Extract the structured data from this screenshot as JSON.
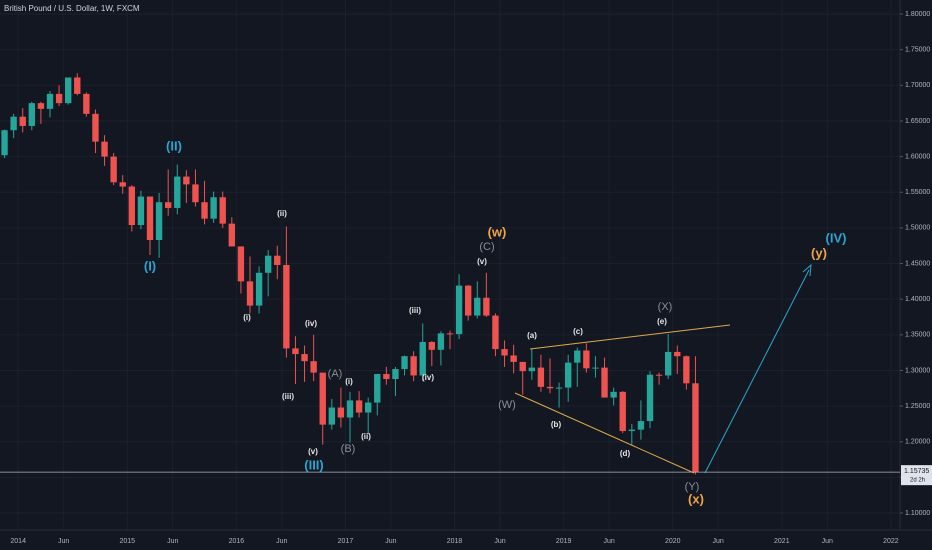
{
  "chart_data": {
    "type": "candlestick",
    "title": "British Pound / U.S. Dollar, 1W, FXCM",
    "x": [
      "2013-11",
      "2013-12",
      "2014-01",
      "2014-02",
      "2014-03",
      "2014-04",
      "2014-05",
      "2014-06",
      "2014-07",
      "2014-08",
      "2014-09",
      "2014-10",
      "2014-11",
      "2014-12",
      "2015-01",
      "2015-02",
      "2015-03",
      "2015-04",
      "2015-05",
      "2015-06",
      "2015-07",
      "2015-08",
      "2015-09",
      "2015-10",
      "2015-11",
      "2015-12",
      "2016-01",
      "2016-02",
      "2016-03",
      "2016-04",
      "2016-05",
      "2016-06",
      "2016-07",
      "2016-08",
      "2016-09",
      "2016-10",
      "2016-11",
      "2016-12",
      "2017-01",
      "2017-02",
      "2017-03",
      "2017-04",
      "2017-05",
      "2017-06",
      "2017-07",
      "2017-08",
      "2017-09",
      "2017-10",
      "2017-11",
      "2017-12",
      "2018-01",
      "2018-02",
      "2018-03",
      "2018-04",
      "2018-05",
      "2018-06",
      "2018-07",
      "2018-08",
      "2018-09",
      "2018-10",
      "2018-11",
      "2018-12",
      "2019-01",
      "2019-02",
      "2019-03",
      "2019-04",
      "2019-05",
      "2019-06",
      "2019-07",
      "2019-08",
      "2019-09",
      "2019-10",
      "2019-11",
      "2019-12",
      "2020-01",
      "2020-02",
      "2020-03"
    ],
    "open": [
      1.602,
      1.637,
      1.656,
      1.643,
      1.675,
      1.667,
      1.688,
      1.675,
      1.711,
      1.688,
      1.66,
      1.621,
      1.6,
      1.564,
      1.558,
      1.504,
      1.544,
      1.483,
      1.536,
      1.528,
      1.572,
      1.561,
      1.536,
      1.513,
      1.543,
      1.506,
      1.474,
      1.425,
      1.391,
      1.437,
      1.461,
      1.448,
      1.331,
      1.323,
      1.313,
      1.297,
      1.224,
      1.248,
      1.234,
      1.258,
      1.241,
      1.255,
      1.295,
      1.288,
      1.302,
      1.32,
      1.293,
      1.34,
      1.329,
      1.352,
      1.351,
      1.419,
      1.377,
      1.402,
      1.377,
      1.33,
      1.321,
      1.312,
      1.299,
      1.304,
      1.277,
      1.275,
      1.276,
      1.311,
      1.328,
      1.303,
      1.304,
      1.262,
      1.27,
      1.215,
      1.217,
      1.229,
      1.294,
      1.293,
      1.326,
      1.32,
      1.282
    ],
    "high": [
      1.638,
      1.66,
      1.668,
      1.677,
      1.677,
      1.692,
      1.7,
      1.711,
      1.717,
      1.69,
      1.666,
      1.63,
      1.605,
      1.574,
      1.56,
      1.552,
      1.544,
      1.549,
      1.582,
      1.589,
      1.581,
      1.582,
      1.566,
      1.551,
      1.551,
      1.515,
      1.474,
      1.46,
      1.446,
      1.469,
      1.475,
      1.502,
      1.348,
      1.335,
      1.35,
      1.297,
      1.26,
      1.276,
      1.27,
      1.271,
      1.262,
      1.295,
      1.305,
      1.305,
      1.321,
      1.327,
      1.366,
      1.341,
      1.355,
      1.356,
      1.435,
      1.42,
      1.425,
      1.437,
      1.38,
      1.342,
      1.336,
      1.312,
      1.33,
      1.322,
      1.317,
      1.283,
      1.322,
      1.332,
      1.338,
      1.32,
      1.318,
      1.276,
      1.271,
      1.225,
      1.258,
      1.299,
      1.297,
      1.351,
      1.335,
      1.321,
      1.32
    ],
    "low": [
      1.598,
      1.626,
      1.634,
      1.637,
      1.646,
      1.655,
      1.671,
      1.673,
      1.686,
      1.656,
      1.605,
      1.587,
      1.56,
      1.548,
      1.495,
      1.498,
      1.462,
      1.458,
      1.517,
      1.519,
      1.535,
      1.53,
      1.505,
      1.507,
      1.5,
      1.474,
      1.408,
      1.38,
      1.38,
      1.404,
      1.428,
      1.318,
      1.281,
      1.284,
      1.285,
      1.196,
      1.217,
      1.22,
      1.199,
      1.234,
      1.211,
      1.237,
      1.28,
      1.264,
      1.293,
      1.285,
      1.285,
      1.306,
      1.307,
      1.33,
      1.344,
      1.37,
      1.373,
      1.375,
      1.32,
      1.305,
      1.296,
      1.266,
      1.287,
      1.27,
      1.268,
      1.248,
      1.256,
      1.277,
      1.297,
      1.29,
      1.262,
      1.251,
      1.212,
      1.196,
      1.203,
      1.219,
      1.28,
      1.288,
      1.295,
      1.273,
      1.1541
    ],
    "close": [
      1.637,
      1.656,
      1.643,
      1.675,
      1.667,
      1.688,
      1.675,
      1.711,
      1.688,
      1.66,
      1.621,
      1.6,
      1.564,
      1.558,
      1.504,
      1.544,
      1.483,
      1.536,
      1.528,
      1.572,
      1.561,
      1.536,
      1.513,
      1.543,
      1.506,
      1.474,
      1.425,
      1.391,
      1.437,
      1.461,
      1.448,
      1.331,
      1.323,
      1.313,
      1.297,
      1.224,
      1.248,
      1.234,
      1.258,
      1.241,
      1.255,
      1.295,
      1.288,
      1.302,
      1.32,
      1.293,
      1.34,
      1.329,
      1.352,
      1.351,
      1.419,
      1.377,
      1.402,
      1.377,
      1.33,
      1.321,
      1.312,
      1.299,
      1.304,
      1.277,
      1.275,
      1.276,
      1.311,
      1.328,
      1.303,
      1.304,
      1.262,
      1.27,
      1.215,
      1.217,
      1.229,
      1.294,
      1.293,
      1.326,
      1.32,
      1.282,
      1.15735
    ],
    "up_color": "#26a69a",
    "down_color": "#ef5350",
    "countdown": "2d 2h",
    "xlim": [
      "2013-11",
      "2022-02"
    ],
    "xticks": [
      {
        "value": "2014-01",
        "label": "2014"
      },
      {
        "value": "2014-06",
        "label": "Jun"
      },
      {
        "value": "2015-01",
        "label": "2015"
      },
      {
        "value": "2015-06",
        "label": "Jun"
      },
      {
        "value": "2016-01",
        "label": "2016"
      },
      {
        "value": "2016-06",
        "label": "Jun"
      },
      {
        "value": "2017-01",
        "label": "2017"
      },
      {
        "value": "2017-06",
        "label": "Jun"
      },
      {
        "value": "2018-01",
        "label": "2018"
      },
      {
        "value": "2018-06",
        "label": "Jun"
      },
      {
        "value": "2019-01",
        "label": "2019"
      },
      {
        "value": "2019-06",
        "label": "Jun"
      },
      {
        "value": "2020-01",
        "label": "2020"
      },
      {
        "value": "2020-06",
        "label": "Jun"
      },
      {
        "value": "2021-01",
        "label": "2021"
      },
      {
        "value": "2021-06",
        "label": "Jun"
      },
      {
        "value": "2022-01",
        "label": "2022"
      }
    ],
    "ylim": [
      1.0762,
      1.8197
    ],
    "yticks": [
      {
        "value": 1.8,
        "label": "1.80000"
      },
      {
        "value": 1.75,
        "label": "1.75000"
      },
      {
        "value": 1.7,
        "label": "1.70000"
      },
      {
        "value": 1.65,
        "label": "1.65000"
      },
      {
        "value": 1.6,
        "label": "1.60000"
      },
      {
        "value": 1.55,
        "label": "1.55000"
      },
      {
        "value": 1.5,
        "label": "1.50000"
      },
      {
        "value": 1.45,
        "label": "1.45000"
      },
      {
        "value": 1.4,
        "label": "1.40000"
      },
      {
        "value": 1.35,
        "label": "1.35000"
      },
      {
        "value": 1.3,
        "label": "1.30000"
      },
      {
        "value": 1.25,
        "label": "1.25000"
      },
      {
        "value": 1.2,
        "label": "1.20000"
      },
      {
        "value": 1.15,
        "label": "1.15000"
      },
      {
        "value": 1.1,
        "label": "1.10000"
      }
    ],
    "grid": true,
    "annotations": [
      {
        "text": "(I)",
        "color": "#2aa6d0"
      },
      {
        "text": "(II)",
        "color": "#2aa6d0"
      },
      {
        "text": "(III)",
        "color": "#2aa6d0"
      },
      {
        "text": "(IV)",
        "color": "#2aa6d0"
      },
      {
        "text": "(i)",
        "color": "#e8e8e8"
      },
      {
        "text": "(ii)",
        "color": "#e8e8e8"
      },
      {
        "text": "(iii)",
        "color": "#e8e8e8"
      },
      {
        "text": "(iv)",
        "color": "#e8e8e8"
      },
      {
        "text": "(v)",
        "color": "#e8e8e8"
      },
      {
        "text": "(A)",
        "color": "#8a8e96"
      },
      {
        "text": "(B)",
        "color": "#8a8e96"
      },
      {
        "text": "(i)",
        "color": "#e8e8e8"
      },
      {
        "text": "(ii)",
        "color": "#e8e8e8"
      },
      {
        "text": "(iii)",
        "color": "#e8e8e8"
      },
      {
        "text": "(iv)",
        "color": "#e8e8e8"
      },
      {
        "text": "(v)",
        "color": "#e8e8e8"
      },
      {
        "text": "(C)",
        "color": "#8a8e96"
      },
      {
        "text": "(w)",
        "color": "#f0a34b"
      },
      {
        "text": "(a)",
        "color": "#e8e8e8"
      },
      {
        "text": "(b)",
        "color": "#e8e8e8"
      },
      {
        "text": "(c)",
        "color": "#e8e8e8"
      },
      {
        "text": "(d)",
        "color": "#e8e8e8"
      },
      {
        "text": "(e)",
        "color": "#e8e8e8"
      },
      {
        "text": "(X)",
        "color": "#8a8e96"
      },
      {
        "text": "(W)",
        "color": "#8a8e96"
      },
      {
        "text": "(Y)",
        "color": "#8a8e96"
      },
      {
        "text": "(x)",
        "color": "#f0a34b"
      },
      {
        "text": "(y)",
        "color": "#f0a34b"
      }
    ]
  }
}
